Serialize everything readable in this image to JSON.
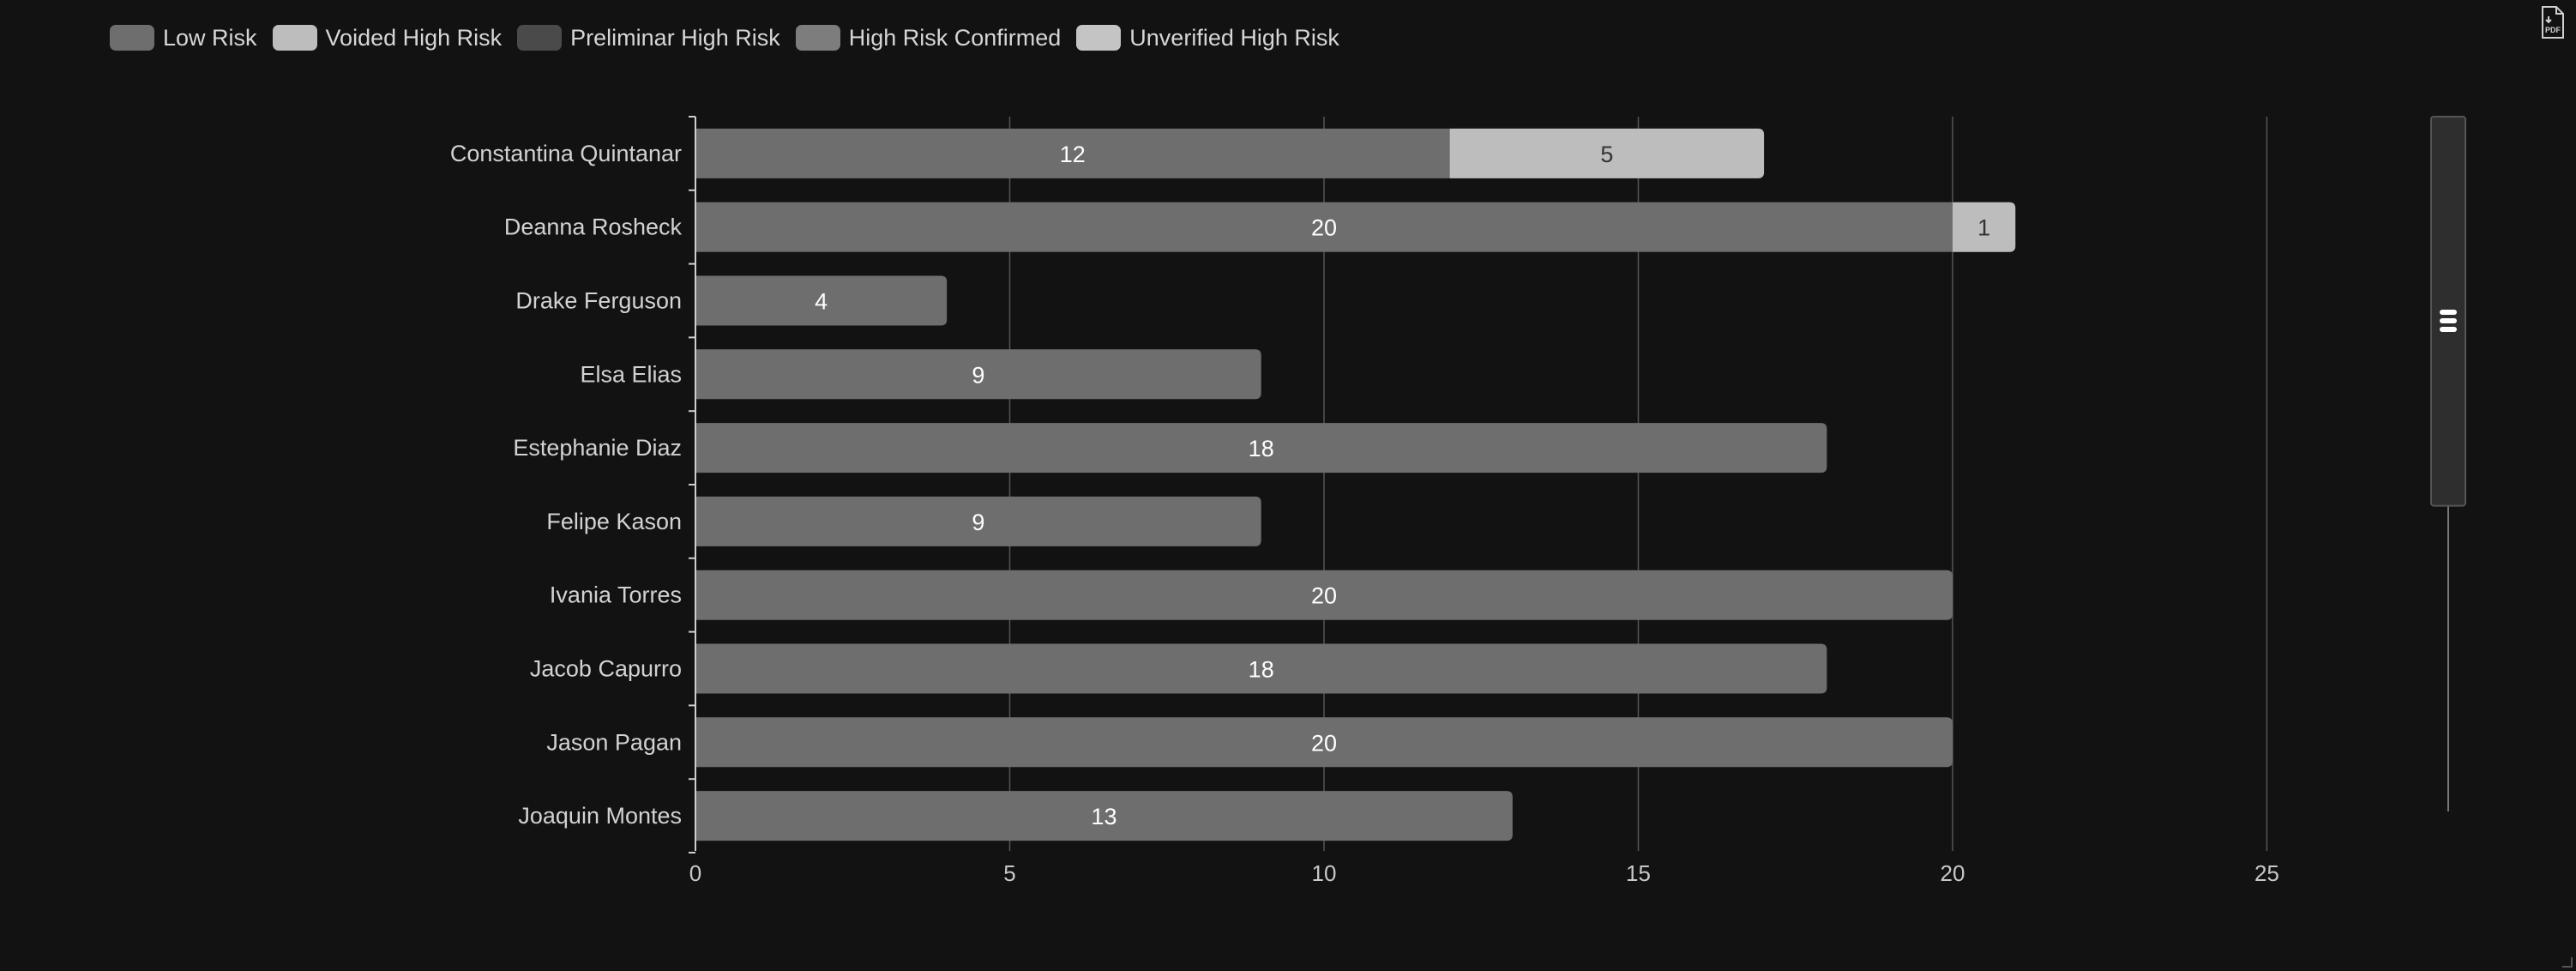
{
  "legend": {
    "items": [
      {
        "label": "Low Risk",
        "color": "#6e6e6e"
      },
      {
        "label": "Voided High Risk",
        "color": "#bdbdbd"
      },
      {
        "label": "Preliminar High Risk",
        "color": "#4a4a4a"
      },
      {
        "label": "High Risk Confirmed",
        "color": "#7d7d7d"
      },
      {
        "label": "Unverified High Risk",
        "color": "#c4c4c4"
      }
    ]
  },
  "toolbar": {
    "export_label": "PDF"
  },
  "chart_data": {
    "type": "bar",
    "orientation": "horizontal",
    "stacked": true,
    "categories": [
      "Constantina Quintanar",
      "Deanna Rosheck",
      "Drake Ferguson",
      "Elsa Elias",
      "Estephanie Diaz",
      "Felipe Kason",
      "Ivania Torres",
      "Jacob Capurro",
      "Jason Pagan",
      "Joaquin Montes"
    ],
    "series": [
      {
        "name": "Low Risk",
        "color": "#6e6e6e",
        "values": [
          12,
          20,
          4,
          9,
          18,
          9,
          20,
          18,
          20,
          13
        ]
      },
      {
        "name": "Voided High Risk",
        "color": "#bdbdbd",
        "values": [
          5,
          1,
          0,
          0,
          0,
          0,
          0,
          0,
          0,
          0
        ]
      },
      {
        "name": "Preliminar High Risk",
        "color": "#4a4a4a",
        "values": [
          0,
          0,
          0,
          0,
          0,
          0,
          0,
          0,
          0,
          0
        ]
      },
      {
        "name": "High Risk Confirmed",
        "color": "#7d7d7d",
        "values": [
          0,
          0,
          0,
          0,
          0,
          0,
          0,
          0,
          0,
          0
        ]
      },
      {
        "name": "Unverified High Risk",
        "color": "#c4c4c4",
        "values": [
          0,
          0,
          0,
          0,
          0,
          0,
          0,
          0,
          0,
          0
        ]
      }
    ],
    "xlim": [
      0,
      28
    ],
    "xticks": [
      0,
      5,
      10,
      15,
      20,
      25
    ],
    "grid": "vertical",
    "legend_position": "top-left",
    "data_labels": true,
    "zoom_slider": {
      "orientation": "vertical",
      "range": [
        0,
        0.56
      ]
    }
  }
}
